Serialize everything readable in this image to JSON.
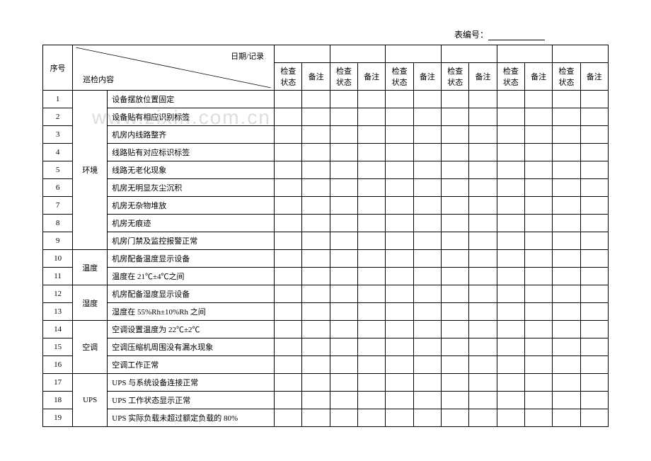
{
  "header": {
    "form_number_label": "表编号：",
    "form_number_value": ""
  },
  "table_header": {
    "seq": "序号",
    "diag_top": "日期/记录",
    "diag_bottom": "巡检内容",
    "check_status": "检查状态",
    "remark": "备注"
  },
  "watermark": "www.zixin.com.cn",
  "categories": [
    {
      "name": "环境",
      "rowspan": 9
    },
    {
      "name": "温度",
      "rowspan": 2
    },
    {
      "name": "湿度",
      "rowspan": 2
    },
    {
      "name": "空调",
      "rowspan": 3
    },
    {
      "name": "UPS",
      "rowspan": 3
    }
  ],
  "rows": [
    {
      "seq": "1",
      "cat_index": 0,
      "desc": "设备摆放位置固定"
    },
    {
      "seq": "2",
      "desc": "设备贴有相应识别标签"
    },
    {
      "seq": "3",
      "desc": "机房内线路整齐"
    },
    {
      "seq": "4",
      "desc": "线路贴有对应标识标签"
    },
    {
      "seq": "5",
      "desc": "线路无老化现象"
    },
    {
      "seq": "6",
      "desc": "机房无明显灰尘沉积"
    },
    {
      "seq": "7",
      "desc": "机房无杂物堆放"
    },
    {
      "seq": "8",
      "desc": "机房无痕迹"
    },
    {
      "seq": "9",
      "desc": "机房门禁及监控报警正常"
    },
    {
      "seq": "10",
      "cat_index": 1,
      "desc": "机房配备温度显示设备"
    },
    {
      "seq": "11",
      "desc": "温度在 21℃±4℃之间"
    },
    {
      "seq": "12",
      "cat_index": 2,
      "desc": "机房配备湿度显示设备"
    },
    {
      "seq": "13",
      "desc": "湿度在 55%Rh±10%Rh 之间"
    },
    {
      "seq": "14",
      "cat_index": 3,
      "desc": "空调设置温度为 22℃±2℃"
    },
    {
      "seq": "15",
      "desc": "空调压缩机周围没有漏水现象"
    },
    {
      "seq": "16",
      "desc": "空调工作正常"
    },
    {
      "seq": "17",
      "cat_index": 4,
      "desc": "UPS 与系统设备连接正常"
    },
    {
      "seq": "18",
      "desc": "UPS 工作状态显示正常"
    },
    {
      "seq": "19",
      "desc": "UPS 实际负载未超过额定负载的 80%"
    }
  ],
  "date_columns": 6
}
